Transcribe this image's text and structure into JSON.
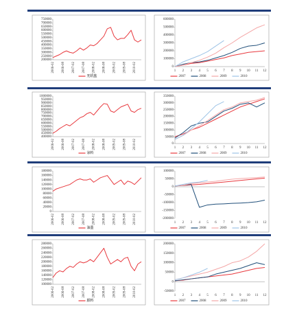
{
  "chart_data": [
    {
      "type": "line",
      "categories": [
        "2006-02",
        null,
        null,
        "2006-08",
        null,
        null,
        "2007-02",
        null,
        null,
        "2007-08",
        null,
        null,
        "2008-02",
        null,
        null,
        "2008-08",
        null,
        null,
        "2009-02",
        null,
        null,
        "2009-08",
        null,
        null,
        "2010-02",
        null,
        null
      ],
      "series": [
        {
          "name": "无机盐",
          "color": "#e8383d",
          "values": [
            230000,
            250000,
            270000,
            300000,
            320000,
            300000,
            290000,
            320000,
            360000,
            330000,
            360000,
            400000,
            390000,
            420000,
            470000,
            520000,
            620000,
            640000,
            520000,
            470000,
            490000,
            490000,
            540000,
            600000,
            470000,
            440000,
            470000
          ]
        }
      ],
      "ylim": [
        200000,
        750000
      ],
      "yticks": [
        200000,
        250000,
        300000,
        350000,
        400000,
        450000,
        500000,
        550000,
        600000,
        650000,
        700000,
        750000
      ],
      "legend": "bottom"
    },
    {
      "type": "line",
      "categories": [
        "1",
        "2",
        "3",
        "4",
        "5",
        "6",
        "7",
        "8",
        "9",
        "10",
        "11",
        "12"
      ],
      "series": [
        {
          "name": "2007",
          "color": "#e8383d",
          "values": [
            0,
            20000,
            40000,
            50000,
            70000,
            90000,
            110000,
            140000,
            160000,
            180000,
            190000,
            200000
          ]
        },
        {
          "name": "2008",
          "color": "#1f4e79",
          "values": [
            0,
            30000,
            50000,
            60000,
            80000,
            110000,
            140000,
            180000,
            230000,
            260000,
            270000,
            300000
          ]
        },
        {
          "name": "2009",
          "color": "#f4a6a6",
          "values": [
            0,
            20000,
            50000,
            80000,
            120000,
            170000,
            240000,
            300000,
            370000,
            430000,
            490000,
            530000
          ]
        },
        {
          "name": "2010",
          "color": "#9dc3e6",
          "values": [
            0,
            60000,
            100000,
            140000,
            190000,
            260000,
            330000,
            null,
            null,
            null,
            null,
            null
          ]
        }
      ],
      "ylim": [
        0,
        600000
      ],
      "yticks": [
        0,
        100000,
        200000,
        300000,
        400000,
        500000,
        600000
      ],
      "legend": "bottom"
    },
    {
      "type": "line",
      "categories": [
        "2006-02",
        null,
        null,
        "2006-08",
        null,
        null,
        "2007-02",
        null,
        null,
        "2007-08",
        null,
        null,
        "2008-02",
        null,
        null,
        "2008-08",
        null,
        null,
        "2009-02",
        null,
        null,
        "2009-08",
        null,
        null,
        "2010-02",
        null,
        null
      ],
      "series": [
        {
          "name": "涂料",
          "color": "#e8383d",
          "values": [
            450000,
            480000,
            520000,
            550000,
            580000,
            560000,
            600000,
            640000,
            680000,
            700000,
            740000,
            760000,
            720000,
            780000,
            840000,
            890000,
            880000,
            780000,
            760000,
            800000,
            840000,
            860000,
            880000,
            780000,
            760000,
            800000,
            820000
          ]
        }
      ],
      "ylim": [
        400000,
        1000000
      ],
      "yticks": [
        400000,
        450000,
        500000,
        550000,
        600000,
        650000,
        700000,
        750000,
        800000,
        850000,
        900000,
        950000,
        1000000
      ],
      "legend": "bottom"
    },
    {
      "type": "line",
      "categories": [
        "1",
        "2",
        "3",
        "4",
        "5",
        "6",
        "7",
        "8",
        "9",
        "10",
        "11",
        "12"
      ],
      "series": [
        {
          "name": "2007",
          "color": "#e8383d",
          "values": [
            50000,
            70000,
            100000,
            120000,
            150000,
            180000,
            210000,
            240000,
            270000,
            290000,
            310000,
            330000
          ]
        },
        {
          "name": "2008",
          "color": "#1f4e79",
          "values": [
            40000,
            80000,
            130000,
            150000,
            160000,
            200000,
            240000,
            260000,
            290000,
            300000,
            270000,
            300000
          ]
        },
        {
          "name": "2009",
          "color": "#f4a6a6",
          "values": [
            30000,
            60000,
            100000,
            130000,
            170000,
            210000,
            250000,
            270000,
            300000,
            310000,
            320000,
            340000
          ]
        },
        {
          "name": "2010",
          "color": "#9dc3e6",
          "values": [
            30000,
            60000,
            110000,
            160000,
            220000,
            280000,
            310000,
            null,
            null,
            null,
            null,
            null
          ]
        }
      ],
      "ylim": [
        0,
        350000
      ],
      "yticks": [
        0,
        50000,
        100000,
        150000,
        200000,
        250000,
        300000,
        350000
      ],
      "legend": "bottom"
    },
    {
      "type": "line",
      "categories": [
        "2006-02",
        null,
        null,
        "2006-08",
        null,
        null,
        "2007-02",
        null,
        null,
        "2007-08",
        null,
        null,
        "2008-02",
        null,
        null,
        "2008-08",
        null,
        null,
        "2009-02",
        null,
        null,
        "2009-08",
        null,
        null,
        "2010-02",
        null,
        null
      ],
      "series": [
        {
          "name": "油墨",
          "color": "#e8383d",
          "values": [
            90000,
            100000,
            105000,
            110000,
            115000,
            120000,
            130000,
            140000,
            145000,
            140000,
            140000,
            145000,
            130000,
            140000,
            150000,
            155000,
            160000,
            140000,
            120000,
            130000,
            140000,
            120000,
            135000,
            130000,
            120000,
            135000,
            150000
          ]
        }
      ],
      "ylim": [
        0,
        180000
      ],
      "yticks": [
        0,
        20000,
        40000,
        60000,
        80000,
        100000,
        120000,
        140000,
        160000,
        180000
      ],
      "legend": "bottom"
    },
    {
      "type": "line",
      "categories": [
        "1",
        "2",
        "3",
        "4",
        "5",
        "6",
        "7",
        "8",
        "9",
        "10",
        "11",
        "12"
      ],
      "series": [
        {
          "name": "2007",
          "color": "#e8383d",
          "values": [
            5000,
            8000,
            12000,
            15000,
            20000,
            25000,
            30000,
            35000,
            40000,
            45000,
            50000,
            55000
          ]
        },
        {
          "name": "2008",
          "color": "#1f4e79",
          "values": [
            5000,
            10000,
            15000,
            -130000,
            -115000,
            -110000,
            -108000,
            -105000,
            -103000,
            -100000,
            -95000,
            -85000
          ]
        },
        {
          "name": "2009",
          "color": "#f4a6a6",
          "values": [
            5000,
            10000,
            20000,
            25000,
            30000,
            35000,
            42000,
            48000,
            52000,
            55000,
            58000,
            62000
          ]
        },
        {
          "name": "2010",
          "color": "#9dc3e6",
          "values": [
            5000,
            15000,
            25000,
            30000,
            40000,
            null,
            null,
            null,
            null,
            null,
            null,
            null
          ]
        }
      ],
      "ylim": [
        -200000,
        100000
      ],
      "yticks": [
        -200000,
        -150000,
        -100000,
        -50000,
        0,
        50000,
        100000
      ],
      "legend": "bottom"
    },
    {
      "type": "line",
      "categories": [
        "2006-02",
        null,
        null,
        "2006-08",
        null,
        null,
        "2007-02",
        null,
        null,
        "2007-08",
        null,
        null,
        "2008-02",
        null,
        null,
        "2008-08",
        null,
        null,
        "2009-02",
        null,
        null,
        "2009-08",
        null,
        null,
        "2010-02",
        null,
        null
      ],
      "series": [
        {
          "name": "颜料",
          "color": "#e8383d",
          "values": [
            130000,
            150000,
            160000,
            155000,
            170000,
            180000,
            175000,
            190000,
            200000,
            195000,
            200000,
            210000,
            200000,
            220000,
            240000,
            260000,
            220000,
            190000,
            200000,
            210000,
            200000,
            215000,
            220000,
            180000,
            160000,
            190000,
            200000
          ]
        }
      ],
      "ylim": [
        100000,
        280000
      ],
      "yticks": [
        100000,
        120000,
        140000,
        160000,
        180000,
        200000,
        220000,
        240000,
        260000,
        280000
      ],
      "legend": "bottom"
    },
    {
      "type": "line",
      "categories": [
        "1",
        "2",
        "3",
        "4",
        "5",
        "6",
        "7",
        "8",
        "9",
        "10",
        "11",
        "12"
      ],
      "series": [
        {
          "name": "2007",
          "color": "#e8383d",
          "values": [
            5000,
            8000,
            15000,
            20000,
            25000,
            30000,
            35000,
            40000,
            50000,
            60000,
            70000,
            75000
          ]
        },
        {
          "name": "2008",
          "color": "#1f4e79",
          "values": [
            5000,
            10000,
            15000,
            20000,
            25000,
            40000,
            50000,
            60000,
            70000,
            85000,
            100000,
            90000
          ]
        },
        {
          "name": "2009",
          "color": "#f4a6a6",
          "values": [
            10000,
            20000,
            30000,
            40000,
            50000,
            65000,
            80000,
            100000,
            110000,
            130000,
            160000,
            200000
          ]
        },
        {
          "name": "2010",
          "color": "#9dc3e6",
          "values": [
            10000,
            20000,
            35000,
            50000,
            70000,
            null,
            null,
            null,
            null,
            null,
            null,
            null
          ]
        }
      ],
      "ylim": [
        -50000,
        200000
      ],
      "yticks": [
        -50000,
        0,
        50000,
        100000,
        150000,
        200000
      ],
      "legend": "bottom"
    }
  ]
}
